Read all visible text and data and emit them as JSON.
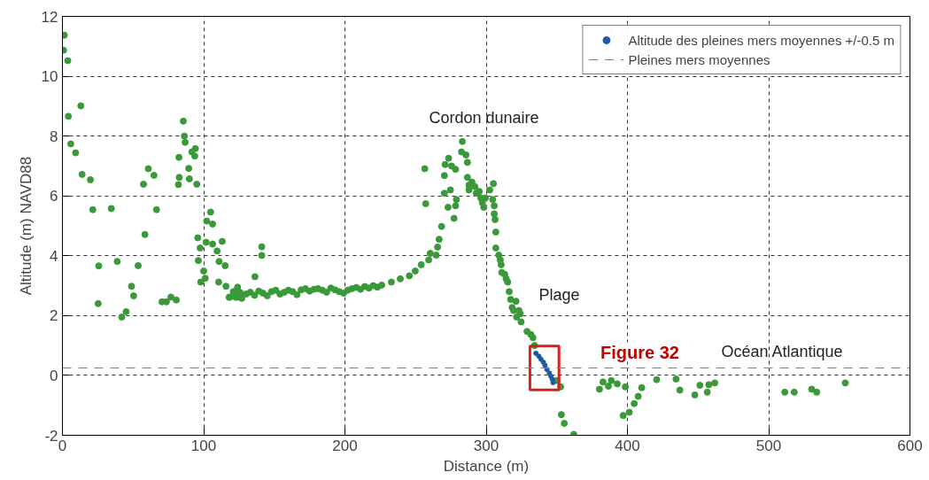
{
  "chart_data": {
    "type": "scatter",
    "xlabel": "Distance (m)",
    "ylabel": "Altitude (m) NAVD88",
    "xlim": [
      0,
      600
    ],
    "ylim": [
      -2,
      12
    ],
    "xticks": [
      0,
      100,
      200,
      300,
      400,
      500,
      600
    ],
    "yticks": [
      -2,
      0,
      2,
      4,
      6,
      8,
      10,
      12
    ],
    "grid": true,
    "legend": "top right",
    "marker": "circle",
    "series": [
      {
        "color": "#3a9a3a",
        "x": [
          1.3,
          0.8,
          3.8,
          4.2,
          13,
          5.9,
          9.3,
          13.9,
          19.8,
          21.5,
          34.6,
          25.7,
          25.3,
          38.8,
          42,
          45.1,
          48.9,
          50.4,
          53.6,
          58.4,
          57.4,
          60.8,
          64.8,
          66.6,
          70.5,
          73.6,
          76.8,
          80.6,
          85.6,
          86.3,
          86.9,
          82.5,
          91.6,
          94.1,
          93.7,
          89.4,
          82.7,
          82.1,
          89.9,
          95.1,
          102.1,
          104.9,
          106.3,
          95.8,
          97.5,
          101.7,
          106.3,
          113.1,
          109.5,
          96.2,
          110.9,
          115.2,
          100,
          97.9,
          101.1,
          110.6,
          115.8,
          118.6,
          122.2,
          125.8,
          126.4,
          122.8,
          141.1,
          141.1,
          136.3,
          118,
          121,
          124,
          127,
          130,
          133,
          136,
          139,
          142,
          145,
          148,
          151,
          154,
          157,
          160,
          163,
          166,
          169,
          172,
          175,
          178,
          181,
          184,
          187,
          190,
          193,
          196,
          199,
          202,
          205,
          208,
          211,
          214,
          217,
          220,
          223,
          226,
          232.9,
          239.2,
          245.6,
          249.8,
          254,
          259.3,
          260.4,
          264.6,
          265.6,
          266.7,
          268.4,
          256.5,
          257.2,
          270.4,
          270.4,
          270.9,
          273.4,
          273,
          274.7,
          275.5,
          278.3,
          278.9,
          278.3,
          277.2,
          283.1,
          282.5,
          285.7,
          286.7,
          286.7,
          287.8,
          289.9,
          287.8,
          292,
          293,
          295.1,
          296.2,
          297.3,
          298.3,
          299.4,
          302.5,
          305.1,
          304.6,
          305.7,
          305.7,
          306.3,
          306.8,
          306.8,
          308.9,
          310,
          310.6,
          311,
          313.1,
          314.1,
          315.2,
          316.3,
          317.3,
          321.1,
          318.4,
          319.4,
          323.2,
          324.1,
          321.5,
          324.7,
          328.9,
          331.6,
          333.1,
          334.2,
          350,
          352.7,
          353.2,
          355.3,
          362,
          382.7,
          380.2,
          386.5,
          388.6,
          392.8,
          398.5,
          397,
          401.3,
          404.8,
          407.6,
          410.1,
          420.7,
          434.4,
          437.1,
          447.7,
          451.3,
          456.5,
          457.6,
          461.8,
          511.4,
          518.1,
          530.4,
          534,
          554.2
        ],
        "values": [
          11.37,
          10.87,
          10.52,
          8.66,
          9.01,
          7.74,
          7.44,
          6.72,
          6.54,
          5.54,
          5.58,
          3.66,
          2.4,
          3.81,
          1.95,
          2.13,
          2.98,
          2.66,
          3.67,
          4.71,
          6.39,
          6.91,
          6.69,
          5.54,
          2.46,
          2.46,
          2.62,
          2.52,
          8.5,
          8.0,
          7.79,
          7.29,
          7.47,
          7.58,
          7.33,
          6.92,
          6.62,
          6.38,
          6.57,
          6.39,
          5.16,
          5.46,
          5.06,
          4.6,
          4.26,
          4.45,
          4.39,
          4.48,
          4.16,
          3.84,
          3.81,
          3.67,
          3.49,
          3.12,
          3.25,
          3.12,
          2.98,
          2.62,
          2.8,
          2.77,
          2.59,
          2.61,
          4.3,
          4.01,
          3.3,
          2.61,
          2.8,
          2.95,
          2.58,
          2.72,
          2.78,
          2.68,
          2.82,
          2.75,
          2.66,
          2.8,
          2.85,
          2.72,
          2.78,
          2.85,
          2.8,
          2.7,
          2.86,
          2.9,
          2.82,
          2.88,
          2.9,
          2.85,
          2.78,
          2.92,
          2.86,
          2.8,
          2.75,
          2.85,
          2.9,
          2.94,
          2.88,
          2.97,
          2.92,
          3.0,
          2.95,
          3.02,
          3.12,
          3.23,
          3.33,
          3.49,
          3.7,
          3.86,
          4.08,
          4.02,
          4.29,
          4.55,
          4.98,
          6.91,
          5.74,
          6.09,
          6.68,
          7.05,
          7.26,
          5.62,
          6.2,
          7.0,
          6.89,
          5.88,
          5.67,
          5.25,
          7.82,
          7.47,
          7.37,
          7.12,
          6.62,
          6.36,
          6.46,
          6.2,
          6.31,
          6.09,
          6.15,
          5.93,
          5.77,
          5.62,
          5.93,
          6.2,
          6.41,
          5.88,
          5.67,
          5.4,
          5.21,
          4.79,
          4.26,
          4.02,
          3.86,
          3.7,
          3.44,
          3.38,
          3.23,
          3.12,
          2.8,
          2.54,
          2.48,
          2.27,
          2.17,
          2.17,
          2.06,
          1.95,
          1.79,
          1.47,
          1.37,
          1.26,
          1.0,
          -0.17,
          -0.38,
          -1.31,
          -1.6,
          -1.97,
          -0.22,
          -0.46,
          -0.36,
          -0.17,
          -0.28,
          -0.38,
          -1.34,
          -1.23,
          -0.94,
          -0.7,
          -0.41,
          -0.14,
          -0.12,
          -0.49,
          -0.65,
          -0.33,
          -0.56,
          -0.31,
          -0.25,
          -0.56,
          -0.56,
          -0.46,
          -0.56,
          -0.25
        ]
      },
      {
        "name": "Altitude des pleines mers moyennes +/-0.5 m",
        "color": "#1f5aa0",
        "x": [
          335.2,
          337.3,
          338.8,
          340.5,
          341.6,
          343,
          344.7,
          345.8,
          346.8,
          347.3
        ],
        "values": [
          0.74,
          0.64,
          0.54,
          0.44,
          0.34,
          0.2,
          0.08,
          -0.03,
          -0.13,
          -0.24
        ]
      }
    ],
    "ref_lines": [
      {
        "axis": "y",
        "value": 0.25,
        "label": "Pleines mers moyennes",
        "color": "#808080",
        "line_style": "dashed"
      }
    ],
    "annotations": [
      "Cordon dunaire",
      "Plage",
      "Océan Atlantique",
      "Figure 32"
    ]
  }
}
